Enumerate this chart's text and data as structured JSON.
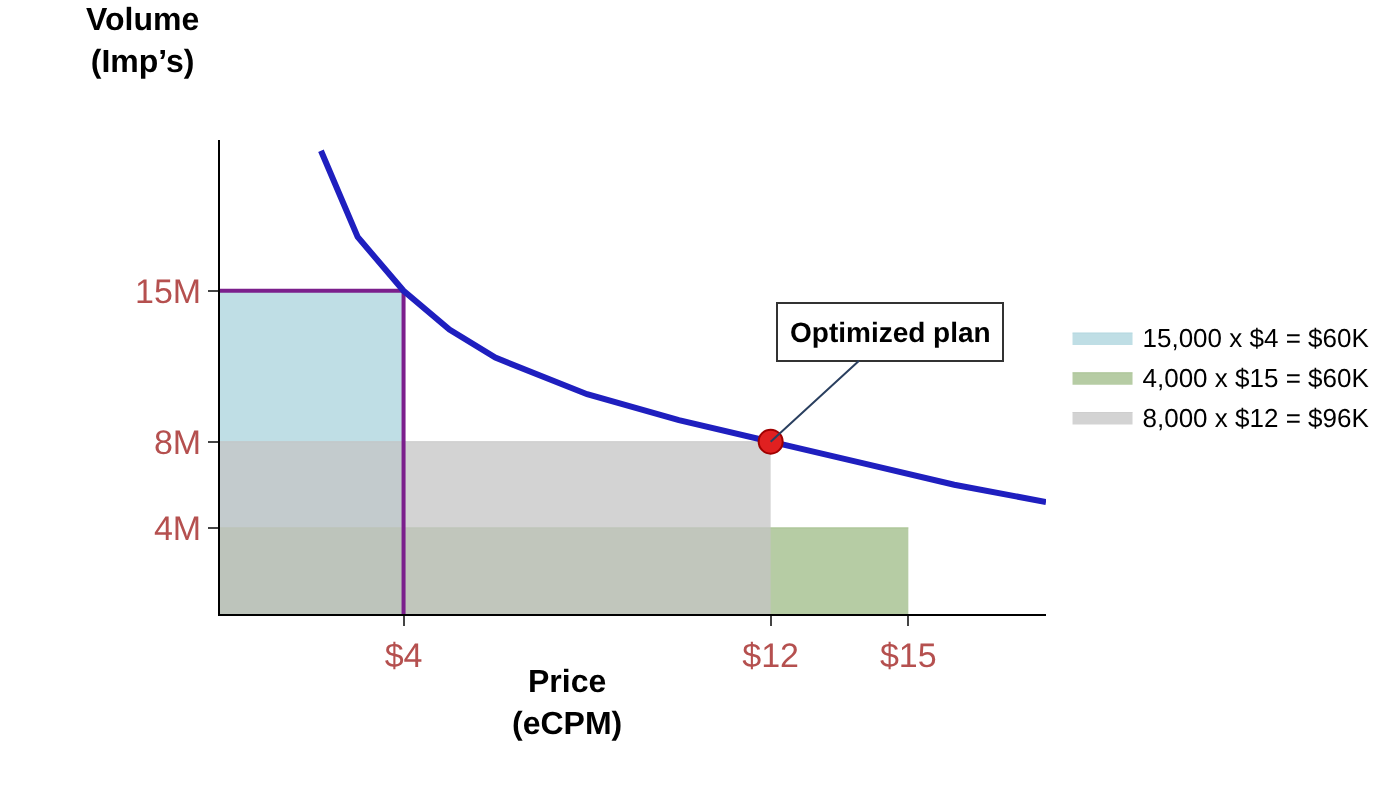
{
  "chart_data": {
    "type": "line",
    "xlabel": "Price\n(eCPM)",
    "ylabel": "Volume\n(Imp’s)",
    "xlim": [
      0,
      18
    ],
    "ylim": [
      0,
      22
    ],
    "xticks": [
      {
        "value": 4,
        "label": "$4"
      },
      {
        "value": 12,
        "label": "$12"
      },
      {
        "value": 15,
        "label": "$15"
      }
    ],
    "yticks": [
      {
        "value": 4,
        "label": "4M"
      },
      {
        "value": 8,
        "label": "8M"
      },
      {
        "value": 15,
        "label": "15M"
      }
    ],
    "legend": "right",
    "series": [
      {
        "type": "area",
        "name": "15,000 x $4 = $60K",
        "color": "#a9d3dc",
        "x": [
          0,
          4
        ],
        "values": [
          15,
          15
        ]
      },
      {
        "type": "area",
        "name": "4,000 x $15 = $60K",
        "color": "#9dbb85",
        "x": [
          0,
          15
        ],
        "values": [
          4,
          4
        ]
      },
      {
        "type": "area",
        "name": "8,000 x $12 = $96K",
        "color": "#c4c4c4",
        "x": [
          0,
          12
        ],
        "values": [
          8,
          8
        ]
      },
      {
        "color": "#7b1f8c",
        "x": [
          4,
          4
        ],
        "values": [
          0,
          15
        ]
      },
      {
        "color": "#7b1f8c",
        "x": [
          0,
          4
        ],
        "values": [
          15,
          15
        ]
      },
      {
        "color": "#1f1fbf",
        "x": [
          2.2,
          3,
          4,
          5,
          6,
          8,
          10,
          12,
          14,
          16,
          18
        ],
        "values": [
          21.5,
          17.5,
          15,
          13.2,
          11.9,
          10.2,
          9,
          8,
          7,
          6,
          5.2
        ]
      },
      {
        "type": "scatter",
        "color": "#e02020",
        "marker": "circle",
        "x": [
          12
        ],
        "values": [
          8
        ]
      }
    ],
    "annotations": [
      {
        "text": "Optimized plan",
        "x": 12,
        "y": 8
      }
    ]
  }
}
